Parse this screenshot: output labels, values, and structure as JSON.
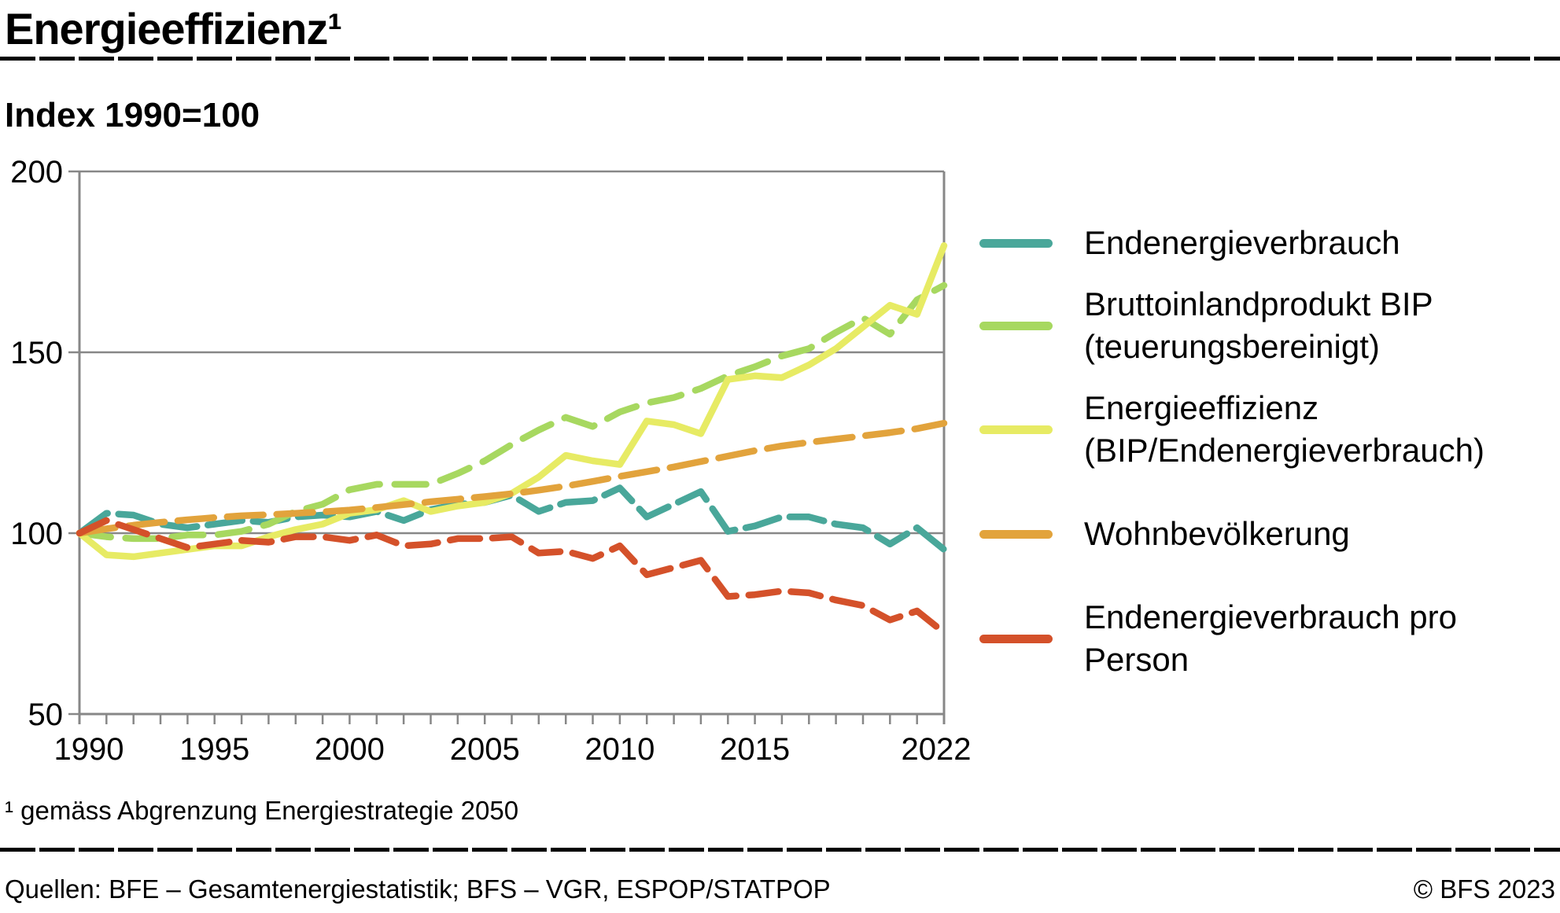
{
  "header": {
    "title": "Energieeffizienz¹",
    "subtitle": "Index 1990=100"
  },
  "legend": {
    "items": [
      {
        "label": "Endenergieverbrauch",
        "color": "#49a79a"
      },
      {
        "label": "Bruttoinlandprodukt BIP\n(teuerungsbereinigt)",
        "color": "#a7d860"
      },
      {
        "label": "Energieeffizienz\n(BIP/Endenergieverbrauch)",
        "color": "#e7eb64"
      },
      {
        "label": "Wohnbevölkerung",
        "color": "#e2a33c"
      },
      {
        "label": "Endenergieverbrauch pro\nPerson",
        "color": "#d4512a"
      }
    ]
  },
  "chart_data": {
    "type": "line",
    "title": "Energieeffizienz",
    "ylabel": "Index 1990=100",
    "ylim": [
      50,
      200
    ],
    "yticks": [
      50,
      100,
      150,
      200
    ],
    "xticks": [
      1990,
      1995,
      2000,
      2005,
      2010,
      2015,
      2022
    ],
    "grid": "horizontal",
    "legend_position": "right",
    "x": [
      1990,
      1991,
      1992,
      1993,
      1994,
      1995,
      1996,
      1997,
      1998,
      1999,
      2000,
      2001,
      2002,
      2003,
      2004,
      2005,
      2006,
      2007,
      2008,
      2009,
      2010,
      2011,
      2012,
      2013,
      2014,
      2015,
      2016,
      2017,
      2018,
      2019,
      2020,
      2021,
      2022
    ],
    "series": [
      {
        "id": "endenergieverbrauch",
        "name": "Endenergieverbrauch",
        "color": "#49a79a",
        "dashed": true,
        "dash": "44 14",
        "values": [
          100,
          105.5,
          105,
          102.5,
          101.5,
          102.5,
          103.5,
          103,
          104.5,
          105,
          104.5,
          106,
          103.5,
          106.5,
          108,
          108.5,
          110.5,
          106,
          108.5,
          109,
          112.5,
          104.5,
          108,
          111.5,
          100.5,
          102,
          104.5,
          104.5,
          102.5,
          101.5,
          97,
          101.5,
          95.5
        ]
      },
      {
        "id": "bip",
        "name": "Bruttoinlandprodukt BIP (teuerungsbereinigt)",
        "color": "#a7d860",
        "dashed": true,
        "dash": "40 19",
        "values": [
          100,
          99,
          98.5,
          98.5,
          99.5,
          99.5,
          100.5,
          102.5,
          106,
          108,
          112,
          113.5,
          113.5,
          113.5,
          116.5,
          120,
          124.5,
          128.5,
          132,
          129.5,
          133.5,
          136,
          137.5,
          140,
          143.5,
          146,
          149,
          151,
          155.5,
          159.5,
          155,
          164.5,
          168.5
        ]
      },
      {
        "id": "energieeffizienz",
        "name": "Energieeffizienz (BIP/Endenergieverbrauch)",
        "color": "#e7eb64",
        "dashed": false,
        "dash": "",
        "values": [
          100,
          94,
          93.5,
          94.5,
          95.5,
          96.5,
          96.5,
          99,
          101,
          102.5,
          105.5,
          106.5,
          109,
          106,
          107.5,
          108.5,
          111,
          115.5,
          121.5,
          120,
          119,
          131,
          130,
          127.5,
          142.5,
          143.5,
          143,
          146.5,
          151,
          157,
          163,
          160.5,
          179.5
        ]
      },
      {
        "id": "wohnbevoelkerung",
        "name": "Wohnbevölkerung",
        "color": "#e2a33c",
        "dashed": true,
        "dash": "46 17",
        "values": [
          100,
          101.2,
          102.2,
          103,
          103.7,
          104.3,
          104.8,
          105.1,
          105.5,
          105.9,
          106.4,
          107.1,
          107.9,
          108.7,
          109.4,
          110.1,
          110.9,
          111.9,
          113,
          114.3,
          115.7,
          117,
          118.3,
          119.8,
          121.3,
          122.8,
          124.1,
          125.1,
          126,
          126.9,
          127.8,
          128.9,
          130.4
        ]
      },
      {
        "id": "endenergieverbrauch-pro-person",
        "name": "Endenergieverbrauch pro Person",
        "color": "#d4512a",
        "dashed": true,
        "dash": "38 16",
        "values": [
          100,
          103.5,
          101,
          98.5,
          96,
          97,
          98,
          97.5,
          99,
          99,
          98,
          99.5,
          96.5,
          97,
          98.5,
          98.5,
          99,
          94.5,
          95,
          93,
          96.5,
          88.5,
          90.5,
          92.5,
          82.5,
          83,
          84,
          83.5,
          81.5,
          80,
          76,
          78.5,
          72.5
        ]
      }
    ]
  },
  "footnote": "¹ gemäss Abgrenzung Energiestrategie 2050",
  "footer": {
    "source": "Quellen: BFE – Gesamtenergiestatistik; BFS – VGR, ESPOP/STATPOP",
    "copyright": "© BFS 2023"
  }
}
